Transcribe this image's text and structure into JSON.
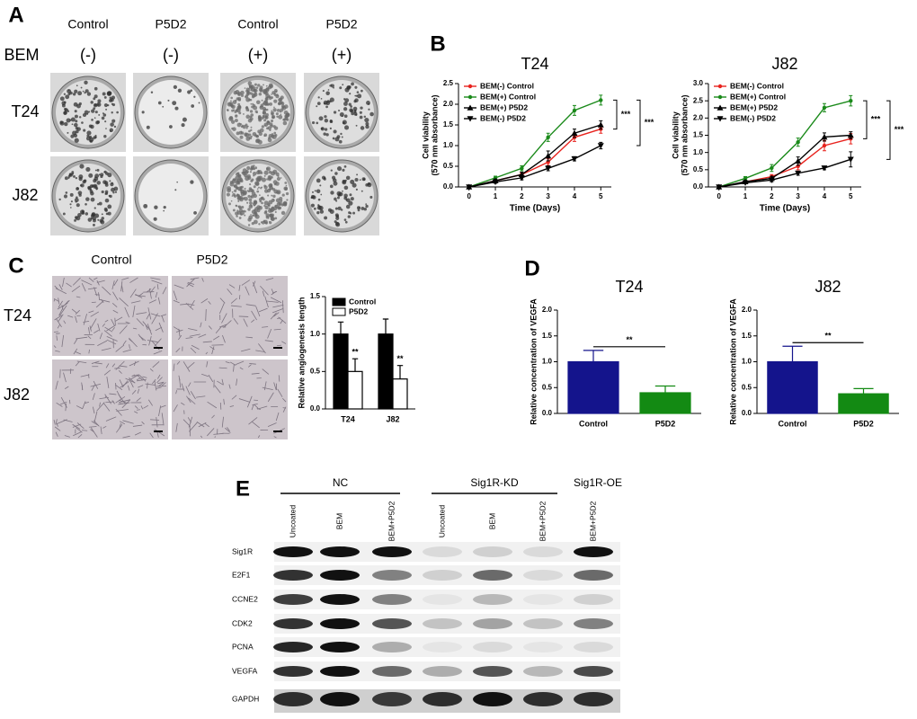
{
  "panel_a": {
    "letter": "A",
    "columns": [
      "Control",
      "P5D2",
      "Control",
      "P5D2"
    ],
    "treatment_label": "BEM",
    "treatment": [
      "(-)",
      "(-)",
      "(+)",
      "(+)"
    ],
    "rows": [
      "T24",
      "J82"
    ]
  },
  "panel_b": {
    "letter": "B"
  },
  "panel_c": {
    "letter": "C",
    "columns": [
      "Control",
      "P5D2"
    ],
    "rows": [
      "T24",
      "J82"
    ]
  },
  "panel_d": {
    "letter": "D"
  },
  "panel_e": {
    "letter": "E",
    "groups": [
      "NC",
      "Sig1R-KD",
      "Sig1R-OE"
    ],
    "lanes": [
      "Uncoated",
      "BEM",
      "BEM+P5D2",
      "Uncoated",
      "BEM",
      "BEM+P5D2",
      "BEM+P5D2"
    ],
    "proteins": [
      "Sig1R",
      "E2F1",
      "CCNE2",
      "CDK2",
      "PCNA",
      "VEGFA",
      "GAPDH"
    ]
  },
  "chart_data": [
    {
      "type": "line",
      "title": "T24",
      "xlabel": "Time (Days)",
      "ylabel": [
        "Cell viability",
        "(570 nm absorbance)"
      ],
      "x": [
        0,
        1,
        2,
        3,
        4,
        5
      ],
      "xlim": [
        -0.4,
        5.4
      ],
      "xticks": [
        0,
        1,
        2,
        3,
        4,
        5
      ],
      "ylim": [
        0,
        2.5
      ],
      "yticks": [
        {
          "value": 0,
          "label": "0.0"
        },
        0.5,
        {
          "value": 1,
          "label": "1.0"
        },
        1.5,
        {
          "value": 2,
          "label": "2.0"
        },
        2.5
      ],
      "series": [
        {
          "name": "BEM(-) Control",
          "color": "#e8231e",
          "marker": "circle",
          "values": [
            0,
            0.15,
            0.3,
            0.6,
            1.2,
            1.4
          ],
          "errors": [
            0.02,
            0.04,
            0.05,
            0.08,
            0.1,
            0.1
          ]
        },
        {
          "name": "BEM(+) Control",
          "color": "#1a8a1a",
          "marker": "circle",
          "values": [
            0,
            0.22,
            0.45,
            1.2,
            1.85,
            2.1
          ],
          "errors": [
            0.02,
            0.04,
            0.06,
            0.1,
            0.12,
            0.12
          ]
        },
        {
          "name": "BEM(+) P5D2",
          "color": "#000000",
          "marker": "triangle-up",
          "values": [
            0,
            0.15,
            0.3,
            0.75,
            1.3,
            1.5
          ],
          "errors": [
            0.02,
            0.04,
            0.06,
            0.12,
            0.1,
            0.1
          ]
        },
        {
          "name": "BEM(-) P5D2",
          "color": "#000000",
          "marker": "triangle-down",
          "values": [
            0,
            0.12,
            0.22,
            0.45,
            0.68,
            1.0
          ],
          "errors": [
            0.02,
            0.03,
            0.05,
            0.06,
            0.05,
            0.08
          ]
        }
      ],
      "annotations": [
        "***",
        "***"
      ]
    },
    {
      "type": "line",
      "title": "J82",
      "xlabel": "Time (Days)",
      "ylabel": [
        "Cell viability",
        "(570 nm absorbance)"
      ],
      "x": [
        0,
        1,
        2,
        3,
        4,
        5
      ],
      "xlim": [
        -0.4,
        5.4
      ],
      "xticks": [
        0,
        1,
        2,
        3,
        4,
        5
      ],
      "ylim": [
        0,
        3
      ],
      "yticks": [
        {
          "value": 0,
          "label": "0.0"
        },
        0.5,
        {
          "value": 1,
          "label": "1.0"
        },
        1.5,
        {
          "value": 2,
          "label": "2.0"
        },
        2.5,
        {
          "value": 3,
          "label": "3.0"
        }
      ],
      "series": [
        {
          "name": "BEM(-) Control",
          "color": "#e8231e",
          "marker": "circle",
          "values": [
            0,
            0.15,
            0.3,
            0.6,
            1.2,
            1.4
          ],
          "errors": [
            0.02,
            0.04,
            0.06,
            0.1,
            0.15,
            0.15
          ]
        },
        {
          "name": "BEM(+) Control",
          "color": "#1a8a1a",
          "marker": "circle",
          "values": [
            0,
            0.25,
            0.55,
            1.3,
            2.3,
            2.5
          ],
          "errors": [
            0.02,
            0.05,
            0.1,
            0.12,
            0.12,
            0.15
          ]
        },
        {
          "name": "BEM(+) P5D2",
          "color": "#000000",
          "marker": "triangle-up",
          "values": [
            0,
            0.15,
            0.25,
            0.75,
            1.45,
            1.5
          ],
          "errors": [
            0.02,
            0.04,
            0.06,
            0.12,
            0.12,
            0.1
          ]
        },
        {
          "name": "BEM(-) P5D2",
          "color": "#000000",
          "marker": "triangle-down",
          "values": [
            0,
            0.12,
            0.2,
            0.4,
            0.55,
            0.8
          ],
          "errors": [
            0.02,
            0.03,
            0.05,
            0.06,
            0.05,
            0.22
          ]
        }
      ],
      "annotations": [
        "***",
        "***"
      ]
    },
    {
      "type": "bar",
      "ylabel": "Relative angiogenesis length",
      "categories": [
        "T24",
        "J82"
      ],
      "ylim": [
        0,
        1.5
      ],
      "yticks": [
        {
          "value": 0,
          "label": "0.0"
        },
        0.5,
        {
          "value": 1,
          "label": "1.0"
        },
        1.5
      ],
      "series": [
        {
          "name": "Control",
          "color": "#000000",
          "values": [
            1.0,
            1.0
          ],
          "errors": [
            0.16,
            0.2
          ]
        },
        {
          "name": "P5D2",
          "color": "#ffffff",
          "values": [
            0.5,
            0.4
          ],
          "errors": [
            0.17,
            0.18
          ]
        }
      ],
      "annotations": [
        "**",
        "**"
      ]
    },
    {
      "type": "bar",
      "title": "T24",
      "ylabel": "Relative concentration of VEGFA",
      "categories": [
        "Control",
        "P5D2"
      ],
      "values": [
        1.0,
        0.4
      ],
      "errors": [
        0.22,
        0.13
      ],
      "colors": [
        "#14148c",
        "#138a13"
      ],
      "ylim": [
        0,
        2
      ],
      "yticks": [
        {
          "value": 0,
          "label": "0.0"
        },
        0.5,
        {
          "value": 1,
          "label": "1.0"
        },
        1.5,
        {
          "value": 2,
          "label": "2.0"
        }
      ],
      "annotations": [
        "**"
      ]
    },
    {
      "type": "bar",
      "title": "J82",
      "ylabel": "Relative concentration of VEGFA",
      "categories": [
        "Control",
        "P5D2"
      ],
      "values": [
        1.0,
        0.38
      ],
      "errors": [
        0.3,
        0.1
      ],
      "colors": [
        "#14148c",
        "#138a13"
      ],
      "ylim": [
        0,
        2
      ],
      "yticks": [
        {
          "value": 0,
          "label": "0.0"
        },
        0.5,
        {
          "value": 1,
          "label": "1.0"
        },
        1.5,
        {
          "value": 2,
          "label": "2.0"
        }
      ],
      "annotations": [
        "**"
      ]
    }
  ]
}
